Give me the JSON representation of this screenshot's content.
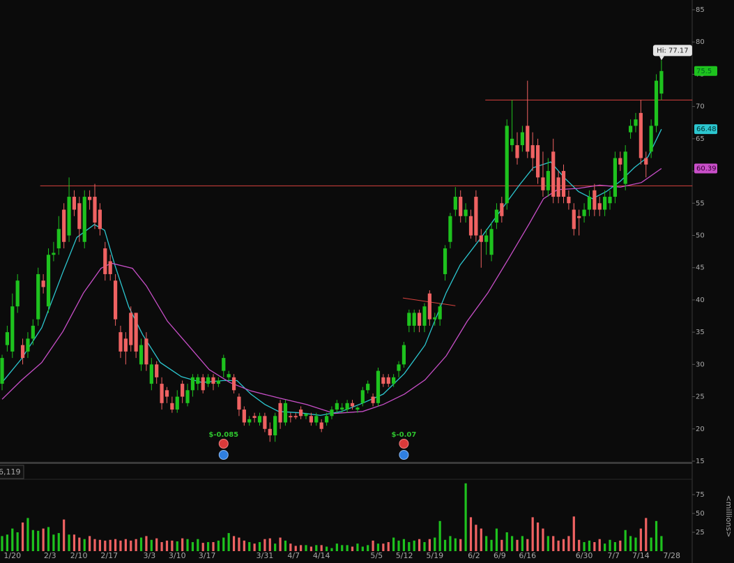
{
  "chart_data": {
    "type": "candlestick",
    "open": [
      27,
      33,
      32,
      39,
      33,
      32,
      34,
      37,
      43,
      39,
      47,
      48,
      54,
      50,
      56,
      55,
      49,
      56,
      56,
      54,
      48,
      46,
      43,
      35,
      34,
      38,
      38,
      30,
      34,
      27,
      30,
      27,
      26,
      24,
      23,
      27,
      24,
      26,
      27,
      28,
      27,
      28,
      27,
      29,
      28,
      28,
      25,
      23,
      21,
      22,
      21,
      22,
      20,
      19,
      24,
      21,
      22,
      22,
      23,
      22,
      22,
      21,
      21,
      21,
      22,
      23,
      23,
      23,
      24,
      23,
      24,
      26,
      25,
      24,
      28,
      28,
      27,
      29,
      30,
      36,
      36,
      38,
      36,
      41,
      37,
      37,
      44,
      49,
      54,
      56,
      53,
      53,
      56,
      50,
      49,
      47,
      52,
      55,
      55,
      64,
      64,
      64,
      67,
      64,
      64,
      59,
      57,
      63,
      59,
      60,
      56,
      54,
      53,
      53,
      54,
      57,
      55,
      54,
      55,
      56,
      62,
      58,
      66,
      67,
      69,
      62,
      63,
      67,
      72
    ],
    "high": [
      31.5,
      36,
      41,
      44,
      34,
      35,
      37,
      45,
      44,
      48,
      49,
      53,
      55,
      59,
      57,
      56,
      57,
      57,
      58,
      55,
      49,
      47,
      44,
      36,
      35,
      39,
      38,
      34,
      35,
      31,
      30.5,
      28,
      26.5,
      25,
      26,
      27.5,
      27,
      28.5,
      28.5,
      28.5,
      28.5,
      28.5,
      28,
      31.5,
      29,
      28.5,
      25.5,
      23.5,
      22,
      22.5,
      22.5,
      22.5,
      21,
      22.5,
      24.5,
      24.5,
      22.5,
      22.5,
      23.5,
      22.5,
      22.5,
      22.5,
      21.5,
      22.5,
      23.5,
      24.5,
      24,
      24.5,
      24.5,
      23.5,
      26.5,
      27.5,
      25.5,
      29.5,
      28.5,
      28.5,
      28.5,
      30.5,
      33.5,
      38.5,
      38.5,
      38.5,
      39.5,
      41.5,
      38,
      39.5,
      48.5,
      53.5,
      57.5,
      57,
      55,
      54,
      57,
      51,
      51,
      52,
      55,
      56,
      68,
      71,
      66,
      67,
      74,
      66,
      65,
      63,
      62,
      65,
      60,
      61,
      57,
      55,
      54,
      55,
      57,
      58,
      56,
      57,
      57,
      63,
      63,
      64,
      68,
      69,
      71,
      63,
      68,
      75,
      77.17
    ],
    "low": [
      26,
      32,
      31,
      38,
      30,
      31,
      33,
      36,
      41,
      38,
      46,
      47,
      48,
      49,
      53,
      49,
      48,
      54,
      51,
      50,
      43,
      43,
      36,
      31,
      30,
      32,
      31,
      29,
      29,
      26,
      27,
      23,
      24,
      22.5,
      22.5,
      24,
      23.5,
      25,
      26,
      25.5,
      26.5,
      26,
      26.5,
      28,
      27.5,
      25.5,
      22,
      20.5,
      20.5,
      21,
      20.5,
      19.5,
      18,
      18,
      20,
      20.5,
      21,
      21.5,
      21.5,
      21.5,
      20.5,
      20.5,
      19.5,
      20.5,
      21.5,
      22.5,
      22.5,
      22.5,
      23,
      22.5,
      23.5,
      25.5,
      23.5,
      23.5,
      26.5,
      26.5,
      26.5,
      28,
      29.5,
      35,
      35,
      35,
      35,
      36,
      36,
      36,
      43,
      48,
      53,
      52,
      52,
      49.5,
      49,
      45,
      47,
      46,
      51,
      52,
      54,
      63,
      61,
      63,
      62,
      60,
      58,
      56,
      56,
      55,
      55,
      55,
      54,
      50,
      50,
      52,
      53,
      53,
      53,
      53,
      54,
      55,
      60,
      57,
      65,
      66,
      61,
      59,
      62,
      66,
      71
    ],
    "close": [
      31,
      35,
      39,
      43,
      31,
      34,
      36,
      44,
      42,
      47,
      47.3,
      51,
      49,
      56,
      54,
      51,
      56,
      55.5,
      52,
      51,
      44,
      44,
      37,
      32,
      32,
      33,
      32,
      33,
      30,
      30,
      28,
      24,
      25,
      23,
      25,
      25,
      26,
      28,
      28,
      26,
      28,
      27,
      27.5,
      31,
      28.5,
      26,
      23,
      21,
      21.5,
      21.7,
      22,
      20,
      19,
      22,
      21,
      24,
      21.8,
      21.8,
      22,
      22.3,
      21,
      22,
      20,
      22,
      23,
      24,
      23.3,
      24,
      23.5,
      23.3,
      26,
      27,
      24,
      29,
      27,
      27,
      28,
      30,
      33,
      38,
      38,
      36,
      39,
      37,
      37.3,
      39,
      48,
      53,
      56,
      53,
      54,
      50,
      50,
      49,
      50,
      51,
      54,
      53,
      67,
      65,
      62,
      66,
      63,
      62,
      59,
      57,
      60,
      56,
      56,
      56,
      55,
      51,
      52.7,
      54,
      56,
      54,
      54,
      56,
      56,
      62,
      61,
      63,
      67,
      68,
      62,
      61,
      67,
      74,
      75.5
    ],
    "volume": [
      20,
      22,
      30,
      25,
      38,
      44,
      28,
      27,
      30,
      32,
      22,
      24,
      42,
      22,
      22,
      18,
      16,
      20,
      16,
      15,
      14,
      15,
      16,
      14,
      16,
      14,
      16,
      18,
      20,
      15,
      17,
      12,
      14,
      14,
      13,
      17,
      16,
      12,
      16,
      11,
      12,
      12,
      14,
      18,
      24,
      20,
      18,
      14,
      12,
      10,
      12,
      16,
      17,
      10,
      18,
      14,
      10,
      7,
      8,
      8,
      6,
      8,
      8,
      6,
      4,
      10,
      8,
      8,
      6,
      10,
      6,
      8,
      14,
      10,
      10,
      12,
      18,
      14,
      16,
      12,
      14,
      16,
      12,
      16,
      18,
      40,
      15,
      20,
      17,
      16,
      90,
      45,
      35,
      30,
      20,
      15,
      30,
      15,
      25,
      20,
      15,
      20,
      16,
      45,
      38,
      30,
      20,
      20,
      14,
      16,
      20,
      46,
      15,
      12,
      14,
      12,
      16,
      10,
      15,
      12,
      14,
      28,
      20,
      18,
      30,
      44,
      18,
      40,
      20
    ],
    "up_color": "#1ec21e",
    "down_color": "#ef6262",
    "ylim": [
      15,
      85
    ],
    "yticks": [
      15,
      20,
      25,
      30,
      35,
      40,
      45,
      50,
      55,
      60,
      65,
      70,
      75,
      80,
      85
    ],
    "volume_ylim": [
      0,
      100
    ],
    "volume_yticks": [
      25,
      50,
      75
    ],
    "volume_axis_label": "<millions>",
    "volume_header": "6,119",
    "x_labels": [
      {
        "index": 2,
        "label": "1/20"
      },
      {
        "index": 9.3,
        "label": "2/3"
      },
      {
        "index": 14.9,
        "label": "2/10"
      },
      {
        "index": 20.8,
        "label": "2/17"
      },
      {
        "index": 28.6,
        "label": "3/3"
      },
      {
        "index": 34,
        "label": "3/10"
      },
      {
        "index": 39.8,
        "label": "3/17"
      },
      {
        "index": 51,
        "label": "3/31"
      },
      {
        "index": 56.6,
        "label": "4/7"
      },
      {
        "index": 62,
        "label": "4/14"
      },
      {
        "index": 72.7,
        "label": "5/5"
      },
      {
        "index": 78.1,
        "label": "5/12"
      },
      {
        "index": 84,
        "label": "5/19"
      },
      {
        "index": 91.6,
        "label": "6/2"
      },
      {
        "index": 96.6,
        "label": "6/9"
      },
      {
        "index": 102,
        "label": "6/16"
      },
      {
        "index": 113,
        "label": "6/30"
      },
      {
        "index": 118.7,
        "label": "7/7"
      },
      {
        "index": 124,
        "label": "7/14"
      },
      {
        "index": 130,
        "label": "7/28"
      }
    ],
    "series": [
      {
        "color": "#2cc6cf",
        "x": [
          0,
          3.7,
          7.7,
          11.8,
          14.5,
          17.9,
          19.9,
          21.9,
          24.6,
          27.3,
          30.7,
          34.8,
          38.8,
          42.9,
          45.6,
          48.3,
          51,
          53.7,
          57.8,
          61.8,
          65.9,
          70,
          74,
          78.1,
          82.1,
          86.2,
          88.9,
          93,
          97,
          100.4,
          103.1,
          106.5,
          109.2,
          111.9,
          114.6,
          117.3,
          120,
          122.7,
          125.4,
          128
        ],
        "values": [
          27.2,
          30.8,
          35.7,
          44.3,
          49.7,
          51.7,
          50.8,
          45.4,
          38.9,
          34.6,
          30.3,
          28.1,
          27.2,
          27.5,
          27.5,
          25.4,
          23.8,
          22.7,
          22.5,
          22.1,
          22.7,
          24,
          25.4,
          28.6,
          33,
          41.1,
          45.4,
          49.7,
          54.1,
          57.8,
          60.5,
          61.4,
          58.9,
          56.8,
          55.7,
          56.8,
          58.4,
          60.5,
          62.2,
          66.48
        ]
      },
      {
        "color": "#c94fc9",
        "x": [
          0,
          3.7,
          7.7,
          11.8,
          15.8,
          19.2,
          21.2,
          25.3,
          28,
          32.1,
          36.1,
          40.2,
          44.2,
          48.3,
          53.7,
          59.1,
          64.5,
          70,
          74,
          78.1,
          82.1,
          86.2,
          90.3,
          94.3,
          98.4,
          102.4,
          105.1,
          107.8,
          111.9,
          116,
          120,
          124.1,
          128
        ],
        "values": [
          24.6,
          27.5,
          30.3,
          35.1,
          41.1,
          44.9,
          45.7,
          44.9,
          42.2,
          36.7,
          33,
          29.2,
          27.2,
          25.9,
          24.8,
          23.8,
          22.4,
          22.7,
          23.8,
          25.4,
          27.6,
          31.3,
          36.7,
          41.1,
          46.5,
          51.9,
          55.7,
          57.1,
          57.3,
          57.8,
          57.5,
          58.2,
          60.39
        ]
      }
    ],
    "last_price": 75.5,
    "hi_label": "Hi: 77.17",
    "reference_lines": [
      {
        "from": 7.4,
        "to": 134,
        "values": [
          57.7,
          57.7
        ]
      },
      {
        "from": 93.8,
        "to": 134,
        "values": [
          71,
          71
        ]
      },
      {
        "from": 77.8,
        "to": 88,
        "values": [
          40.3,
          39.1
        ]
      }
    ],
    "earnings": [
      {
        "index": 43,
        "label": "$-0.085"
      },
      {
        "index": 78,
        "label": "$-0.07"
      }
    ]
  }
}
